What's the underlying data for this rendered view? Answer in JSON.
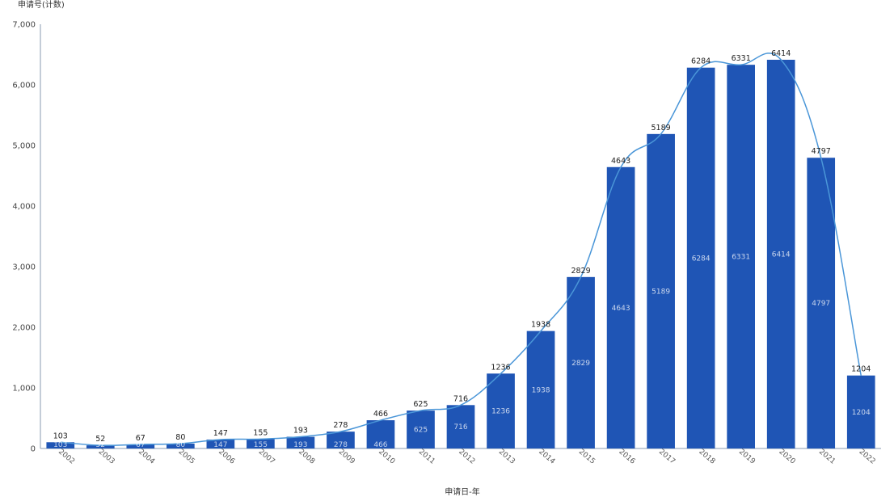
{
  "chart_data": {
    "type": "bar",
    "ylabel": "申请号(计数)",
    "xlabel": "申请日-年",
    "categories": [
      "2002",
      "2003",
      "2004",
      "2005",
      "2006",
      "2007",
      "2008",
      "2009",
      "2010",
      "2011",
      "2012",
      "2013",
      "2014",
      "2015",
      "2016",
      "2017",
      "2018",
      "2019",
      "2020",
      "2021",
      "2022"
    ],
    "series": [
      {
        "values": [
          103,
          52,
          67,
          80,
          147,
          155,
          193,
          278,
          466,
          625,
          716,
          1236,
          1938,
          2829,
          4643,
          5189,
          6284,
          6331,
          6414,
          4797,
          1204
        ]
      }
    ],
    "ylim": [
      0,
      7000
    ],
    "yticks": [
      0,
      1000,
      2000,
      3000,
      4000,
      5000,
      6000,
      7000
    ],
    "yticklabels": [
      "0",
      "1,000",
      "2,000",
      "3,000",
      "4,000",
      "5,000",
      "6,000",
      "7,000"
    ],
    "overlay": "smooth trend line through bar tops",
    "grid": false,
    "colors": {
      "bar": "#1f55b5",
      "line": "#4a96d8",
      "axis": "#8a9bb0"
    }
  }
}
